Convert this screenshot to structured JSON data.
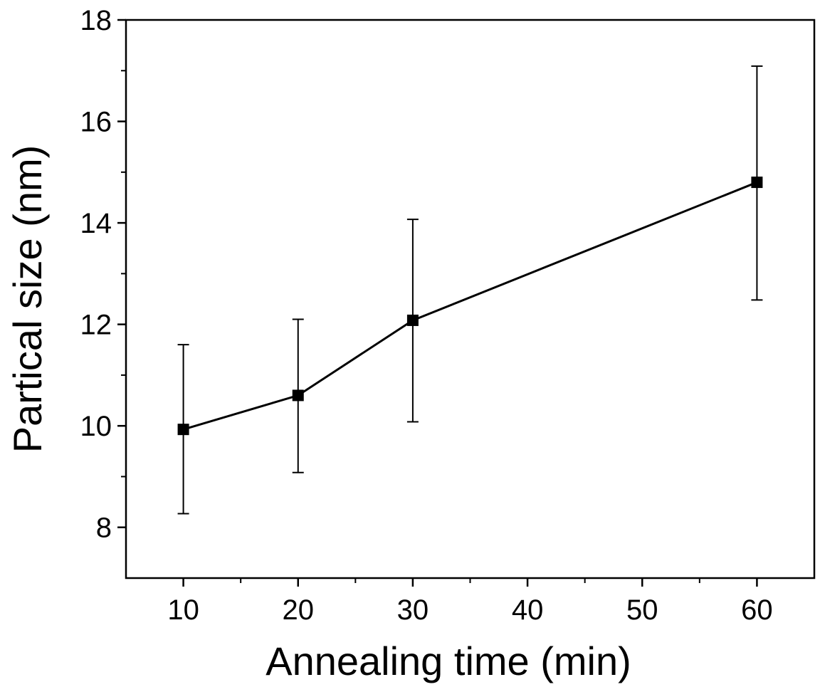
{
  "chart_data": {
    "type": "line",
    "title": "",
    "xlabel": "Annealing time (min)",
    "ylabel": "Partical size (nm)",
    "xlim": [
      5,
      65
    ],
    "ylim": [
      7,
      18
    ],
    "x_ticks": [
      10,
      20,
      30,
      40,
      50,
      60
    ],
    "y_ticks": [
      8,
      10,
      12,
      14,
      16,
      18
    ],
    "x_minor_ticks": [
      15,
      25,
      35,
      45,
      55
    ],
    "y_minor_ticks": [
      9,
      11,
      13,
      15,
      17
    ],
    "grid": false,
    "legend": "none",
    "marker": "square",
    "color": "#000000",
    "series": [
      {
        "x": [
          10,
          20,
          30,
          60
        ],
        "y": [
          9.93,
          10.6,
          12.08,
          14.8
        ],
        "y_err_low": [
          8.27,
          9.08,
          10.08,
          12.48
        ],
        "y_err_high": [
          11.6,
          12.1,
          14.07,
          17.09
        ]
      }
    ]
  }
}
